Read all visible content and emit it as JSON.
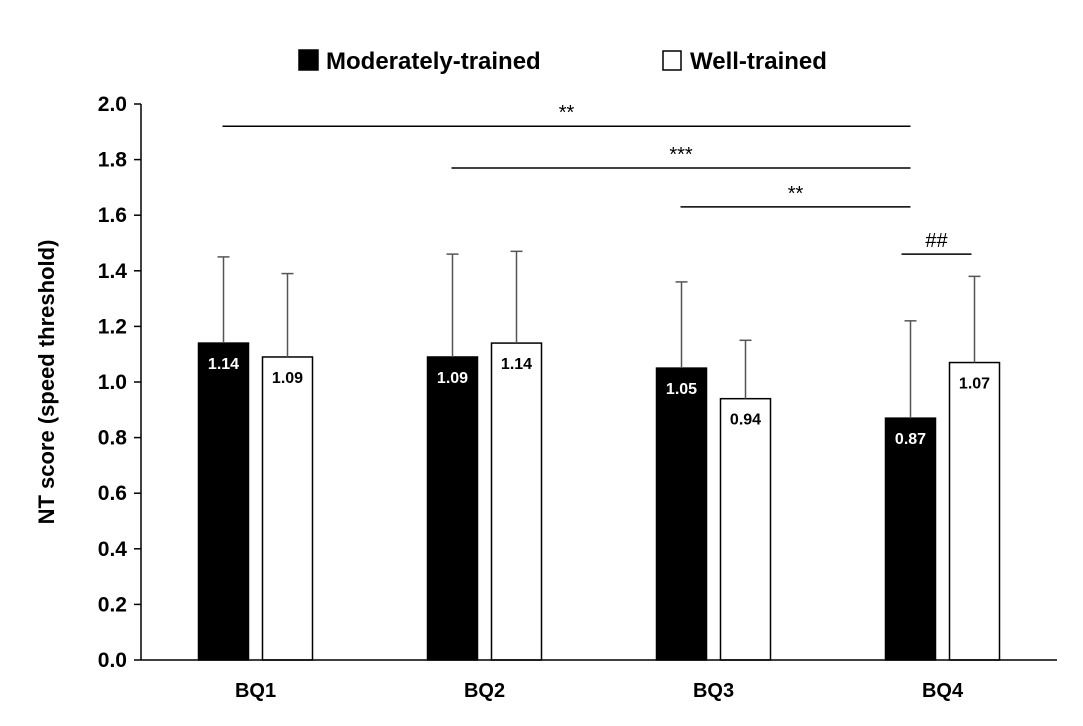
{
  "chart_data": {
    "type": "bar",
    "title": "",
    "xlabel": "",
    "ylabel": "NT score (speed threshold)",
    "ylim": [
      0,
      2.0
    ],
    "yticks": [
      "0.0",
      "0.2",
      "0.4",
      "0.6",
      "0.8",
      "1.0",
      "1.2",
      "1.4",
      "1.6",
      "1.8",
      "2.0"
    ],
    "categories": [
      "BQ1",
      "BQ2",
      "BQ3",
      "BQ4"
    ],
    "series": [
      {
        "name": "Moderately-trained",
        "color": "#000000",
        "values": [
          1.14,
          1.09,
          1.05,
          0.87
        ],
        "labels": [
          "1.14",
          "1.09",
          "1.05",
          "0.87"
        ],
        "errors": [
          0.31,
          0.37,
          0.31,
          0.35
        ]
      },
      {
        "name": "Well-trained",
        "color": "#ffffff",
        "values": [
          1.09,
          1.14,
          0.94,
          1.07
        ],
        "labels": [
          "1.09",
          "1.14",
          "0.94",
          "1.07"
        ],
        "errors": [
          0.3,
          0.33,
          0.21,
          0.31
        ]
      }
    ],
    "legend": {
      "position": "top-center",
      "items": [
        "Moderately-trained",
        "Well-trained"
      ]
    },
    "significance": [
      {
        "label": "**",
        "from_category": 0,
        "to_category": 3,
        "series": "Moderately-trained",
        "y": 1.92
      },
      {
        "label": "***",
        "from_category": 1,
        "to_category": 3,
        "series": "Moderately-trained",
        "y": 1.77
      },
      {
        "label": "**",
        "from_category": 2,
        "to_category": 3,
        "series": "Moderately-trained",
        "y": 1.63
      },
      {
        "label": "##",
        "within_category": 3,
        "y": 1.46
      }
    ]
  }
}
